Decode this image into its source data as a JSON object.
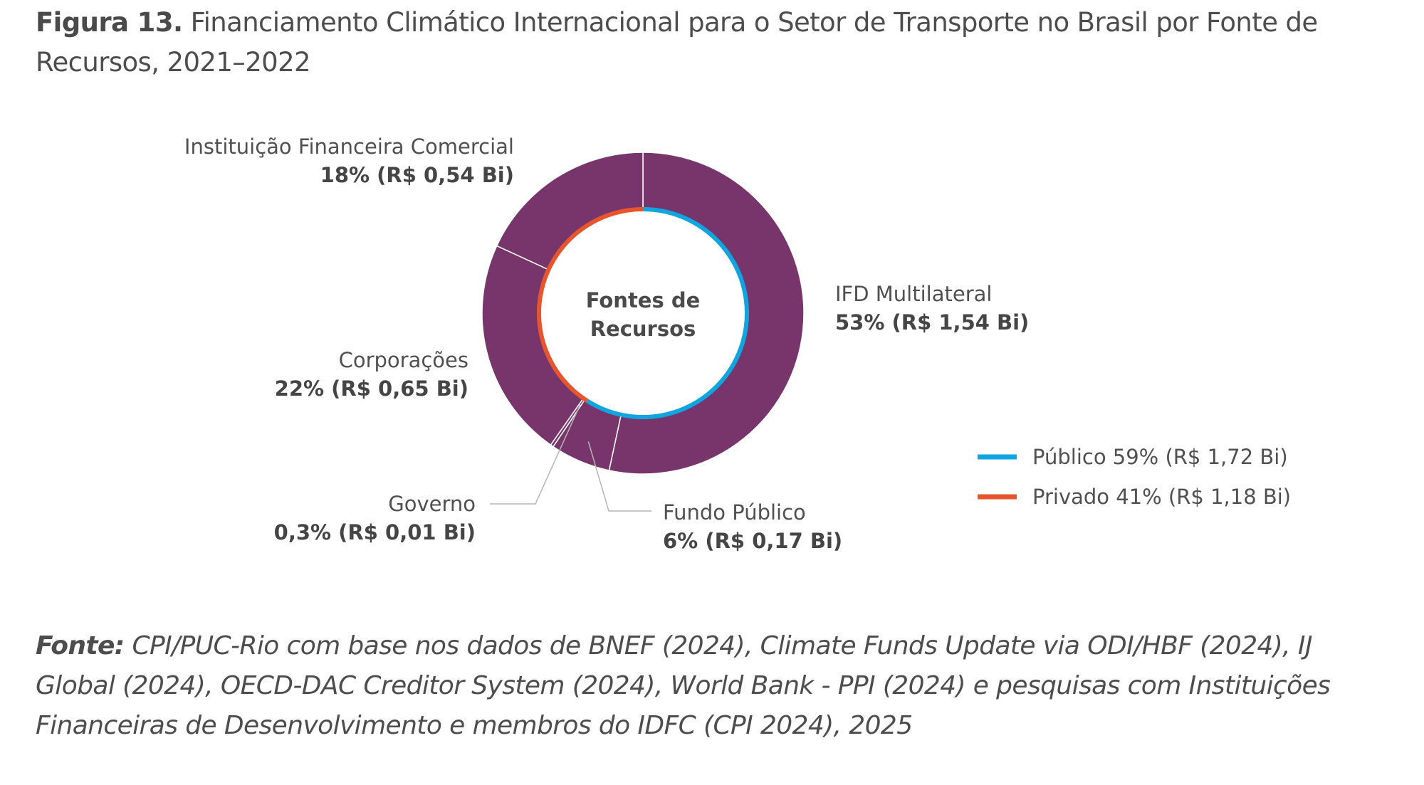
{
  "figure": {
    "label": "Figura 13.",
    "title": "Financiamento Climático Internacional para o Setor de Transporte no Brasil por Fonte de Recursos, 2021–2022"
  },
  "chart_data": {
    "type": "pie",
    "subtype": "donut",
    "center_label": [
      "Fontes de",
      "Recursos"
    ],
    "outer_ring": {
      "color": "#77356b",
      "segments": [
        {
          "name": "IFD Multilateral",
          "percent": 53,
          "value_label": "53% (R$ 1,54 Bi)",
          "value": 1.54,
          "category": "Público"
        },
        {
          "name": "Fundo Público",
          "percent": 6,
          "value_label": "6% (R$ 0,17 Bi)",
          "value": 0.17,
          "category": "Público"
        },
        {
          "name": "Governo",
          "percent": 0.3,
          "value_label": "0,3% (R$ 0,01 Bi)",
          "value": 0.01,
          "category": "Público"
        },
        {
          "name": "Corporações",
          "percent": 22,
          "value_label": "22% (R$ 0,65 Bi)",
          "value": 0.65,
          "category": "Privado"
        },
        {
          "name": "Instituição Financeira Comercial",
          "percent": 18,
          "value_label": "18% (R$ 0,54 Bi)",
          "value": 0.54,
          "category": "Privado"
        }
      ]
    },
    "inner_ring": [
      {
        "name": "Público",
        "percent": 59,
        "value": 1.72,
        "color": "#0ea5e0"
      },
      {
        "name": "Privado",
        "percent": 41,
        "value": 1.18,
        "color": "#e8542b"
      }
    ],
    "legend": [
      {
        "label": "Público 59% (R$ 1,72 Bi)",
        "color": "#0ea5e0"
      },
      {
        "label": "Privado 41% (R$ 1,18 Bi)",
        "color": "#e8542b"
      }
    ],
    "legend_position": "right"
  },
  "source": {
    "label": "Fonte:",
    "text": "CPI/PUC-Rio com base nos dados de BNEF (2024), Climate Funds Update via ODI/HBF (2024), IJ Global (2024), OECD-DAC Creditor System (2024), World Bank - PPI (2024) e pesquisas com Instituições Financeiras de Desenvolvimento e membros do IDFC (CPI 2024), 2025"
  }
}
